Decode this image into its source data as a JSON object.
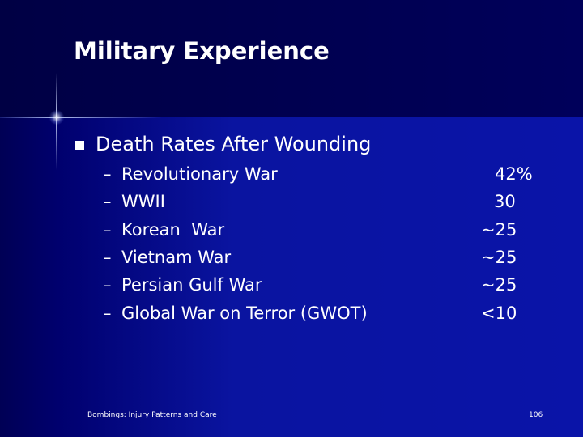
{
  "slide": {
    "title": "Military Experience",
    "bullet": {
      "symbol": "square-bullet-icon",
      "text": "Death Rates After Wounding"
    },
    "dash": "–",
    "items": [
      {
        "label": "Revolutionary War",
        "value": "42%"
      },
      {
        "label": "WWII",
        "value": "30"
      },
      {
        "label": "Korean  War",
        "value": "~25"
      },
      {
        "label": "Vietnam War",
        "value": "~25"
      },
      {
        "label": "Persian Gulf War",
        "value": "~25"
      },
      {
        "label": "Global War on Terror (GWOT)",
        "value": "<10"
      }
    ],
    "footer": {
      "left": "Bombings: Injury Patterns and Care",
      "page_number": "106"
    }
  },
  "colors": {
    "background": "#0a14a0",
    "header": "#000050",
    "text": "#ffffff"
  }
}
